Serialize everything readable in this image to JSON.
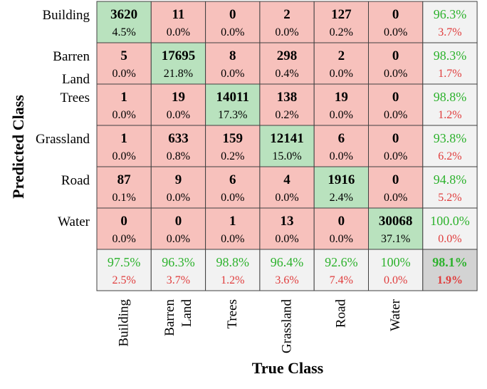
{
  "chart_data": {
    "type": "heatmap",
    "title": "",
    "xlabel": "True Class",
    "ylabel": "Predicted Class",
    "row_labels": [
      [
        "Building"
      ],
      [
        "Barren",
        "Land"
      ],
      [
        "Trees"
      ],
      [
        "Grassland"
      ],
      [
        "Road"
      ],
      [
        "Water"
      ]
    ],
    "col_labels": [
      [
        "Building"
      ],
      [
        "Barren",
        "Land"
      ],
      [
        "Trees"
      ],
      [
        "Grassland"
      ],
      [
        "Road"
      ],
      [
        "Water"
      ]
    ],
    "counts": [
      [
        "3620",
        "11",
        "0",
        "2",
        "127",
        "0"
      ],
      [
        "5",
        "17695",
        "8",
        "298",
        "2",
        "0"
      ],
      [
        "1",
        "19",
        "14011",
        "138",
        "19",
        "0"
      ],
      [
        "1",
        "633",
        "159",
        "12141",
        "6",
        "0"
      ],
      [
        "87",
        "9",
        "6",
        "4",
        "1916",
        "0"
      ],
      [
        "0",
        "0",
        "1",
        "13",
        "0",
        "30068"
      ]
    ],
    "percents": [
      [
        "4.5%",
        "0.0%",
        "0.0%",
        "0.0%",
        "0.2%",
        "0.0%"
      ],
      [
        "0.0%",
        "21.8%",
        "0.0%",
        "0.4%",
        "0.0%",
        "0.0%"
      ],
      [
        "0.0%",
        "0.0%",
        "17.3%",
        "0.2%",
        "0.0%",
        "0.0%"
      ],
      [
        "0.0%",
        "0.8%",
        "0.2%",
        "15.0%",
        "0.0%",
        "0.0%"
      ],
      [
        "0.1%",
        "0.0%",
        "0.0%",
        "0.0%",
        "2.4%",
        "0.0%"
      ],
      [
        "0.0%",
        "0.0%",
        "0.0%",
        "0.0%",
        "0.0%",
        "37.1%"
      ]
    ],
    "row_summary": [
      {
        "correct": "96.3%",
        "error": "3.7%"
      },
      {
        "correct": "98.3%",
        "error": "1.7%"
      },
      {
        "correct": "98.8%",
        "error": "1.2%"
      },
      {
        "correct": "93.8%",
        "error": "6.2%"
      },
      {
        "correct": "94.8%",
        "error": "5.2%"
      },
      {
        "correct": "100.0%",
        "error": "0.0%"
      }
    ],
    "col_summary": [
      {
        "correct": "97.5%",
        "error": "2.5%"
      },
      {
        "correct": "96.3%",
        "error": "3.7%"
      },
      {
        "correct": "98.8%",
        "error": "1.2%"
      },
      {
        "correct": "96.4%",
        "error": "3.6%"
      },
      {
        "correct": "92.6%",
        "error": "7.4%"
      },
      {
        "correct": "100%",
        "error": "0.0%"
      }
    ],
    "overall": {
      "correct": "98.1%",
      "error": "1.9%"
    },
    "colors": {
      "diagonal": "#b9e2be",
      "off_diagonal": "#f7c1bc",
      "summary": "#f2f2f2",
      "overall": "#d3d3d3",
      "border": "#404040",
      "correct_text": "#2db22d",
      "error_text": "#e03c3c",
      "text": "#000000"
    }
  }
}
